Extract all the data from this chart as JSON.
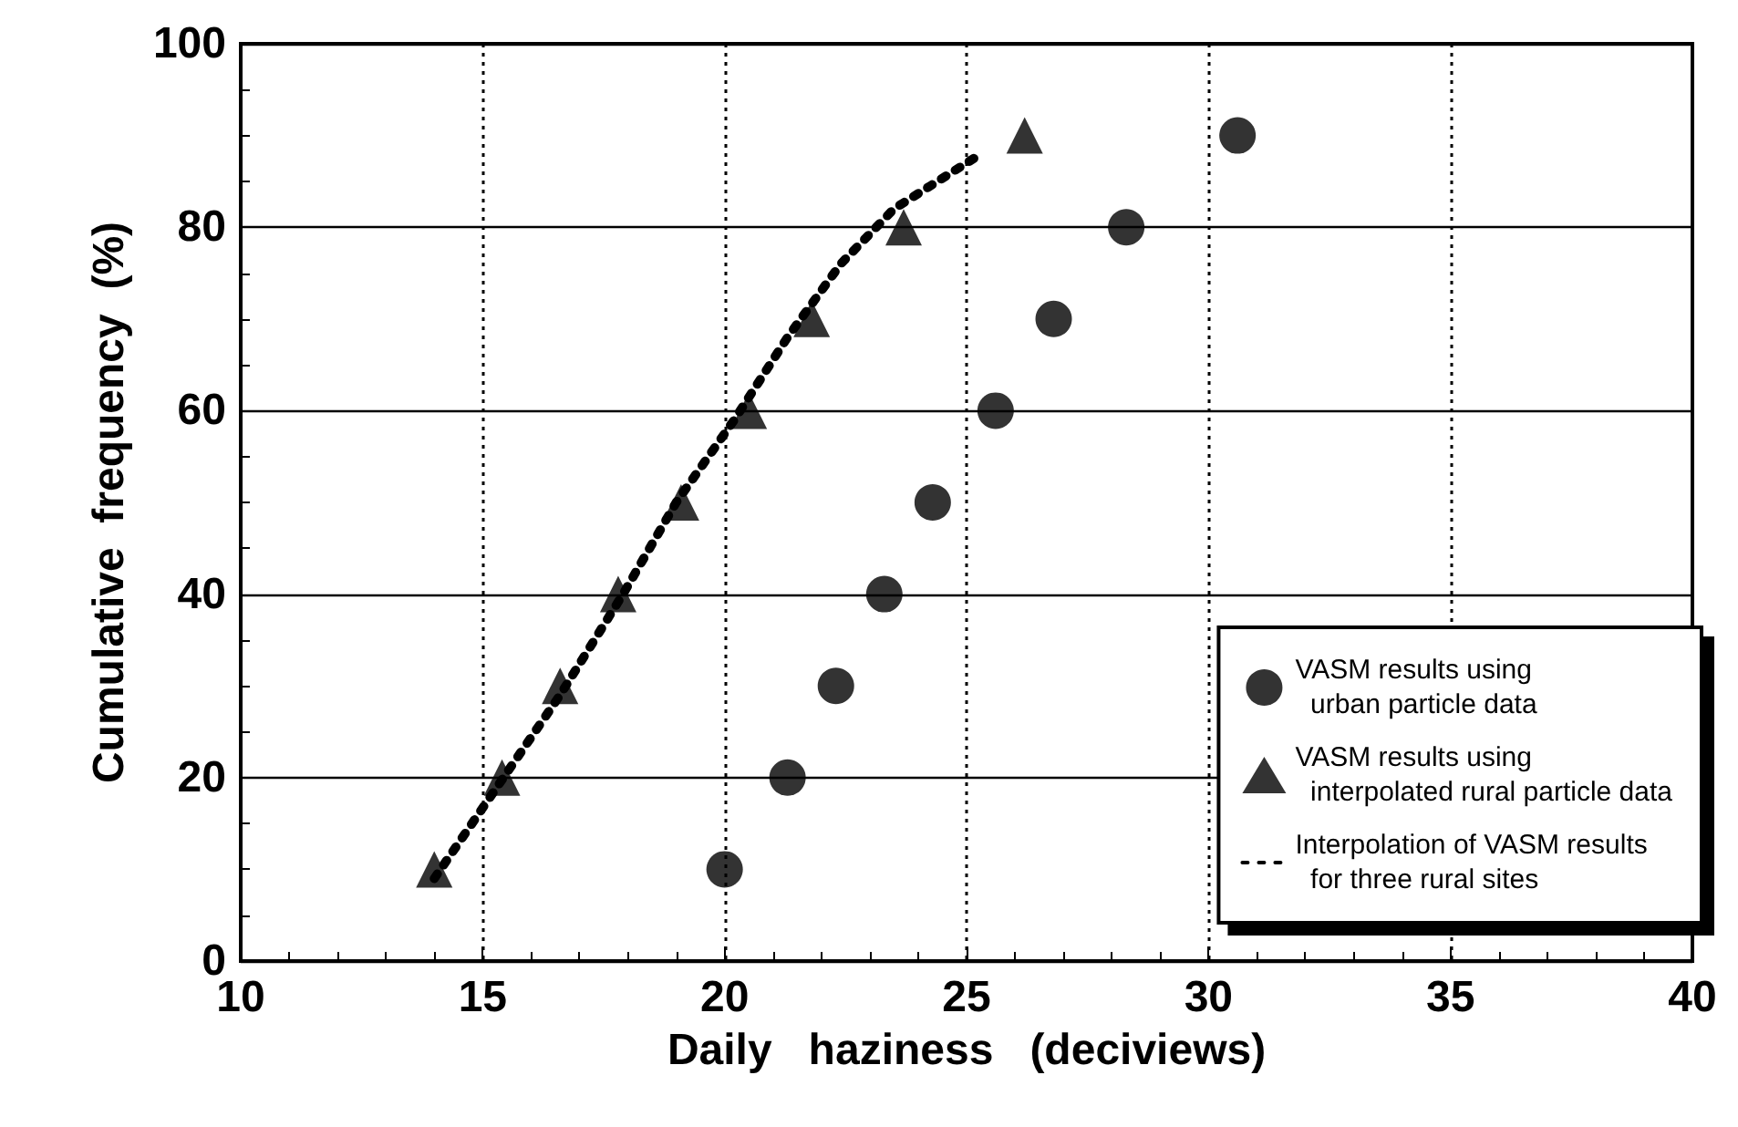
{
  "chart_data": {
    "type": "scatter",
    "xlabel": "Daily   haziness   (deciviews)",
    "ylabel": "Cumulative  frequency  (%)",
    "xlim": [
      10,
      40
    ],
    "xticks": [
      10,
      15,
      20,
      25,
      30,
      35,
      40
    ],
    "ylim": [
      0,
      100
    ],
    "yticks": [
      0,
      20,
      40,
      60,
      80,
      100
    ],
    "grid": true,
    "legend": "bottom right",
    "series": [
      {
        "name": "VASM results using\n  urban particle data",
        "color": "#000000",
        "marker": "circle",
        "x": [
          20.0,
          21.3,
          22.3,
          23.3,
          24.3,
          25.6,
          26.8,
          28.3,
          30.6
        ],
        "values": [
          10,
          20,
          30,
          40,
          50,
          60,
          70,
          80,
          90
        ]
      },
      {
        "name": "VASM results using\n  interpolated rural particle data",
        "color": "#000000",
        "marker": "triangle",
        "x": [
          14.0,
          15.4,
          16.6,
          17.8,
          19.1,
          20.5,
          21.8,
          23.7,
          26.2
        ],
        "values": [
          10,
          20,
          30,
          40,
          50,
          60,
          70,
          80,
          90
        ]
      },
      {
        "name": "Interpolation of VASM results\n  for three rural sites",
        "type": "line",
        "color": "#000000",
        "marker": "none",
        "line_style": "dotted",
        "x": [
          14.0,
          15.3,
          16.6,
          17.9,
          19.0,
          20.2,
          21.3,
          22.4,
          23.5,
          25.3
        ],
        "values": [
          9,
          19,
          29,
          40,
          50,
          59,
          68,
          76,
          82,
          88
        ]
      }
    ]
  }
}
